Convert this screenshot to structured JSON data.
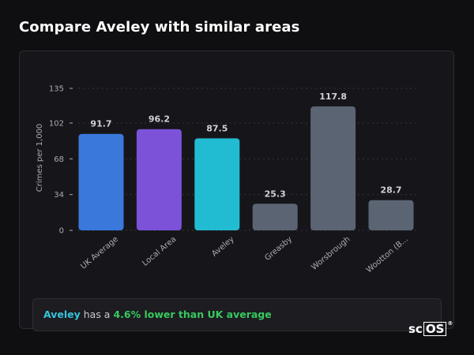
{
  "page": {
    "title": "Compare Aveley with similar areas"
  },
  "summary": {
    "place": "Aveley",
    "middle": " has a ",
    "difference": "4.6% lower than UK average"
  },
  "logo": {
    "text_plain": "sc",
    "text_boxed": "OS",
    "registered": "®"
  },
  "colors": {
    "uk_average": "#3a78dc",
    "local_area": "#7b52d8",
    "aveley": "#22bcd2",
    "other": "#5b6472",
    "axis_text": "#a9a9b2",
    "label_text": "#d0d0d6",
    "grid": "#34343b"
  },
  "chart_data": {
    "type": "bar",
    "ylabel": "Crimes per 1,000",
    "xlabel": "",
    "yticks": [
      0,
      34,
      68,
      102,
      135
    ],
    "ylim": [
      0,
      135
    ],
    "grid": true,
    "categories": [
      "UK Average",
      "Local Area",
      "Aveley",
      "Greasby",
      "Worsbrough",
      "Wootton (B..."
    ],
    "values": [
      91.7,
      96.2,
      87.5,
      25.3,
      117.8,
      28.7
    ],
    "value_labels": [
      "91.7",
      "96.2",
      "87.5",
      "25.3",
      "117.8",
      "28.7"
    ],
    "bar_colors": [
      "#3a78dc",
      "#7b52d8",
      "#22bcd2",
      "#5b6472",
      "#5b6472",
      "#5b6472"
    ]
  }
}
